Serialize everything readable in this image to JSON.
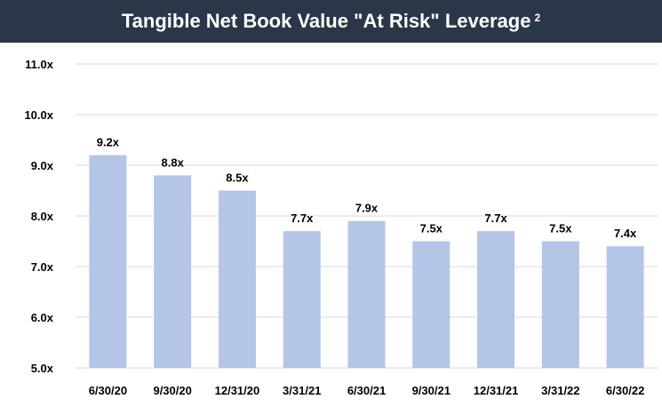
{
  "chart_data": {
    "type": "bar",
    "title": "Tangible Net Book Value \"At Risk\" Leverage",
    "title_footnote": "2",
    "categories": [
      "6/30/20",
      "9/30/20",
      "12/31/20",
      "3/31/21",
      "6/30/21",
      "9/30/21",
      "12/31/21",
      "3/31/22",
      "6/30/22"
    ],
    "values": [
      9.2,
      8.8,
      8.5,
      7.7,
      7.9,
      7.5,
      7.7,
      7.5,
      7.4
    ],
    "data_labels": [
      "9.2x",
      "8.8x",
      "8.5x",
      "7.7x",
      "7.9x",
      "7.5x",
      "7.7x",
      "7.5x",
      "7.4x"
    ],
    "y_ticks": [
      "5.0x",
      "6.0x",
      "7.0x",
      "8.0x",
      "9.0x",
      "10.0x",
      "11.0x"
    ],
    "ylim": [
      5,
      11
    ],
    "xlabel": "",
    "ylabel": "",
    "grid": true,
    "colors": {
      "bar": "#b4c5e7",
      "banner": "#2b3648",
      "grid": "#d9d9d9"
    }
  }
}
